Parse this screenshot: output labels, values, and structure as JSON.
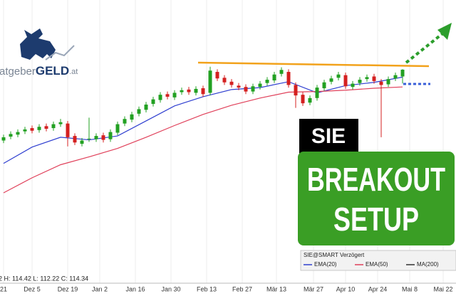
{
  "brand": {
    "prefix": "ratgeber",
    "main": "GELD",
    "suffix": ".at"
  },
  "chart_data": {
    "type": "candlestick",
    "xlim": [
      -0.5,
      63.5
    ],
    "ylim": [
      82,
      125
    ],
    "xticks": [
      {
        "value": 0,
        "label": "21"
      },
      {
        "value": 4,
        "label": "Dez 5"
      },
      {
        "value": 9,
        "label": "Dez 19"
      },
      {
        "value": 13.5,
        "label": "Jan 2"
      },
      {
        "value": 18.5,
        "label": "Jan 16"
      },
      {
        "value": 23.5,
        "label": "Jan 30"
      },
      {
        "value": 28.5,
        "label": "Feb 13"
      },
      {
        "value": 33.5,
        "label": "Feb 27"
      },
      {
        "value": 38.3,
        "label": "Mär 13"
      },
      {
        "value": 43.5,
        "label": "Mär 27"
      },
      {
        "value": 48,
        "label": "Apr 10"
      },
      {
        "value": 52.5,
        "label": "Apr 24"
      },
      {
        "value": 57,
        "label": "Mai 8"
      },
      {
        "value": 61.7,
        "label": "Mai 22"
      }
    ],
    "grid": true,
    "up_color": "#22a022",
    "down_color": "#d42020",
    "open": [
      103.5,
      104.1,
      104.4,
      104.9,
      105.4,
      105.1,
      105.7,
      105.4,
      106.0,
      106.1,
      104.2,
      103.0,
      103.7,
      103.7,
      104.3,
      103.7,
      104.7,
      106.1,
      106.7,
      107.6,
      108.2,
      109.1,
      109.7,
      110.6,
      110.1,
      110.9,
      111.3,
      110.8,
      111.5,
      110.8,
      114.0,
      113.1,
      112.5,
      111.9,
      111.7,
      111.0,
      111.7,
      112.3,
      112.7,
      113.7,
      114.0,
      112.0,
      110.5,
      109.3,
      110.0,
      111.5,
      112.5,
      113.1,
      113.5,
      111.7,
      112.3,
      112.9,
      113.3,
      112.5,
      112.1,
      113.0,
      113.3
    ],
    "high": [
      104.4,
      104.9,
      105.2,
      105.6,
      105.8,
      106.0,
      106.1,
      106.4,
      106.8,
      106.5,
      104.6,
      103.9,
      107.0,
      104.6,
      104.7,
      105.2,
      106.4,
      107.2,
      107.9,
      108.7,
      109.4,
      110.2,
      110.9,
      111.0,
      111.2,
      111.6,
      111.7,
      111.8,
      111.9,
      114.8,
      114.4,
      113.5,
      112.9,
      112.3,
      112.1,
      112.2,
      112.6,
      113.2,
      114.0,
      114.7,
      114.4,
      112.4,
      110.9,
      110.4,
      112.0,
      112.8,
      113.4,
      114.0,
      113.9,
      112.6,
      113.2,
      113.6,
      113.7,
      112.9,
      113.3,
      113.9,
      114.42
    ],
    "low": [
      103.1,
      103.7,
      104.0,
      104.5,
      104.6,
      104.7,
      104.9,
      105.0,
      105.6,
      102.6,
      102.8,
      102.6,
      103.3,
      103.3,
      103.2,
      103.3,
      104.3,
      105.7,
      106.3,
      107.2,
      107.8,
      108.7,
      109.3,
      109.8,
      109.7,
      110.5,
      110.5,
      110.4,
      110.2,
      110.4,
      112.6,
      112.0,
      111.6,
      111.2,
      110.6,
      110.6,
      111.3,
      111.9,
      112.3,
      113.3,
      111.6,
      108.5,
      108.8,
      108.9,
      109.6,
      111.1,
      112.1,
      112.7,
      111.4,
      111.3,
      111.9,
      112.5,
      112.2,
      104.0,
      111.7,
      112.6,
      112.22
    ],
    "close": [
      104.0,
      104.5,
      104.8,
      105.2,
      105.0,
      105.6,
      105.3,
      106.0,
      106.3,
      104.0,
      103.2,
      103.5,
      103.8,
      104.2,
      103.6,
      104.8,
      106.0,
      106.8,
      107.5,
      108.3,
      109.0,
      109.8,
      110.5,
      110.2,
      110.8,
      111.2,
      110.9,
      111.4,
      110.6,
      114.2,
      113.0,
      112.4,
      112.0,
      111.6,
      111.0,
      111.8,
      112.2,
      112.8,
      113.6,
      114.3,
      112.0,
      110.4,
      109.2,
      110.0,
      111.6,
      112.4,
      113.0,
      113.6,
      111.8,
      112.2,
      112.8,
      113.2,
      112.6,
      112.0,
      112.9,
      113.5,
      114.34
    ],
    "overlays": [
      {
        "color": "#2f3fd0",
        "x": [
          0,
          4,
          8,
          12,
          16,
          20,
          24,
          28,
          32,
          36,
          40,
          44,
          48,
          52,
          56
        ],
        "values": [
          100.0,
          102.5,
          104.0,
          103.6,
          104.2,
          106.5,
          108.8,
          110.2,
          111.3,
          111.6,
          112.5,
          110.8,
          111.9,
          112.4,
          113.2
        ]
      },
      {
        "color": "#e0405a",
        "x": [
          0,
          4,
          8,
          12,
          16,
          20,
          24,
          28,
          32,
          36,
          40,
          44,
          48,
          52,
          56
        ],
        "values": [
          95.5,
          97.8,
          99.8,
          101.0,
          102.3,
          104.0,
          105.8,
          107.5,
          108.9,
          110.0,
          110.9,
          111.0,
          111.2,
          111.5,
          111.7
        ]
      }
    ],
    "legend": {
      "title": "SIE@SMART Verzögert",
      "items": [
        {
          "name": "EMA(20)",
          "color": "#2f3fd0"
        },
        {
          "name": "EMA(50)",
          "color": "#e0405a"
        },
        {
          "name": "MA(200)",
          "color": "#333333"
        }
      ]
    },
    "status_line": "2 H: 114.42 L: 112.22 C: 114.34",
    "ticker_label": "SIE",
    "setup_label": [
      "BREAKOUT",
      "SETUP"
    ]
  }
}
